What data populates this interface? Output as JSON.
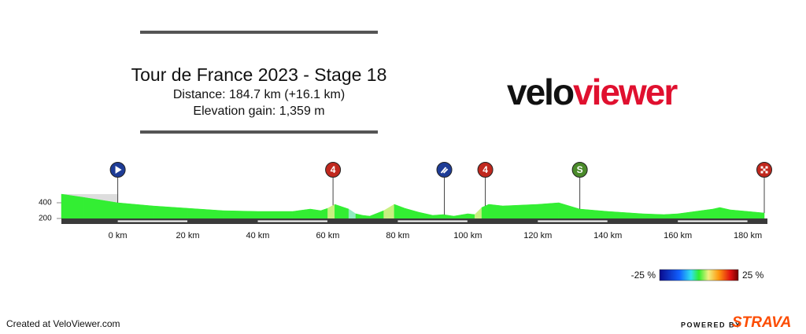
{
  "header": {
    "title": "Tour de France 2023 - Stage 18",
    "distance": "Distance: 184.7 km (+16.1 km)",
    "elevation": "Elevation gain: 1,359 m",
    "logo_a": "velo",
    "logo_b": "viewer"
  },
  "chart_data": {
    "type": "area",
    "x": [
      -16.1,
      -10,
      0,
      10,
      20,
      30,
      40,
      50,
      55,
      58,
      60,
      62,
      64,
      66,
      68,
      70,
      72,
      76,
      79,
      82,
      86,
      90,
      93,
      96,
      100,
      102,
      104,
      106,
      110,
      120,
      126,
      132,
      140,
      150,
      156,
      160,
      165,
      170,
      172,
      175,
      180,
      184.7
    ],
    "values": [
      510,
      470,
      400,
      360,
      330,
      300,
      290,
      290,
      320,
      300,
      330,
      380,
      350,
      320,
      260,
      240,
      230,
      300,
      380,
      330,
      280,
      240,
      250,
      230,
      260,
      250,
      340,
      380,
      360,
      380,
      400,
      320,
      290,
      260,
      250,
      260,
      290,
      320,
      340,
      310,
      290,
      270
    ],
    "xlim": [
      -16.1,
      184.7
    ],
    "ylim": [
      200,
      550
    ],
    "xticks": [
      {
        "value": 0,
        "label": "0 km"
      },
      {
        "value": 20,
        "label": "20 km"
      },
      {
        "value": 40,
        "label": "40 km"
      },
      {
        "value": 60,
        "label": "60 km"
      },
      {
        "value": 80,
        "label": "80 km"
      },
      {
        "value": 100,
        "label": "100 km"
      },
      {
        "value": 120,
        "label": "120 km"
      },
      {
        "value": 140,
        "label": "140 km"
      },
      {
        "value": 160,
        "label": "160 km"
      },
      {
        "value": 180,
        "label": "180 km"
      }
    ],
    "yticks": [
      200,
      400
    ],
    "markers": [
      {
        "km": 0,
        "icon": "start",
        "color": "#1e3c96"
      },
      {
        "km": 61.5,
        "icon": "climb",
        "label": "4",
        "color": "#c0281e"
      },
      {
        "km": 93.3,
        "icon": "feed",
        "color": "#1e3c96"
      },
      {
        "km": 105,
        "icon": "climb",
        "label": "4",
        "color": "#c0281e"
      },
      {
        "km": 132,
        "icon": "sprint",
        "label": "S",
        "color": "#4a8a2a"
      },
      {
        "km": 184.7,
        "icon": "finish",
        "color": "#c0281e"
      }
    ],
    "colorbar": {
      "min_label": "-25 %",
      "max_label": "25 %"
    }
  },
  "footer": {
    "created": "Created at VeloViewer.com",
    "powered": "POWERED BY",
    "brand": "STRAVA"
  }
}
